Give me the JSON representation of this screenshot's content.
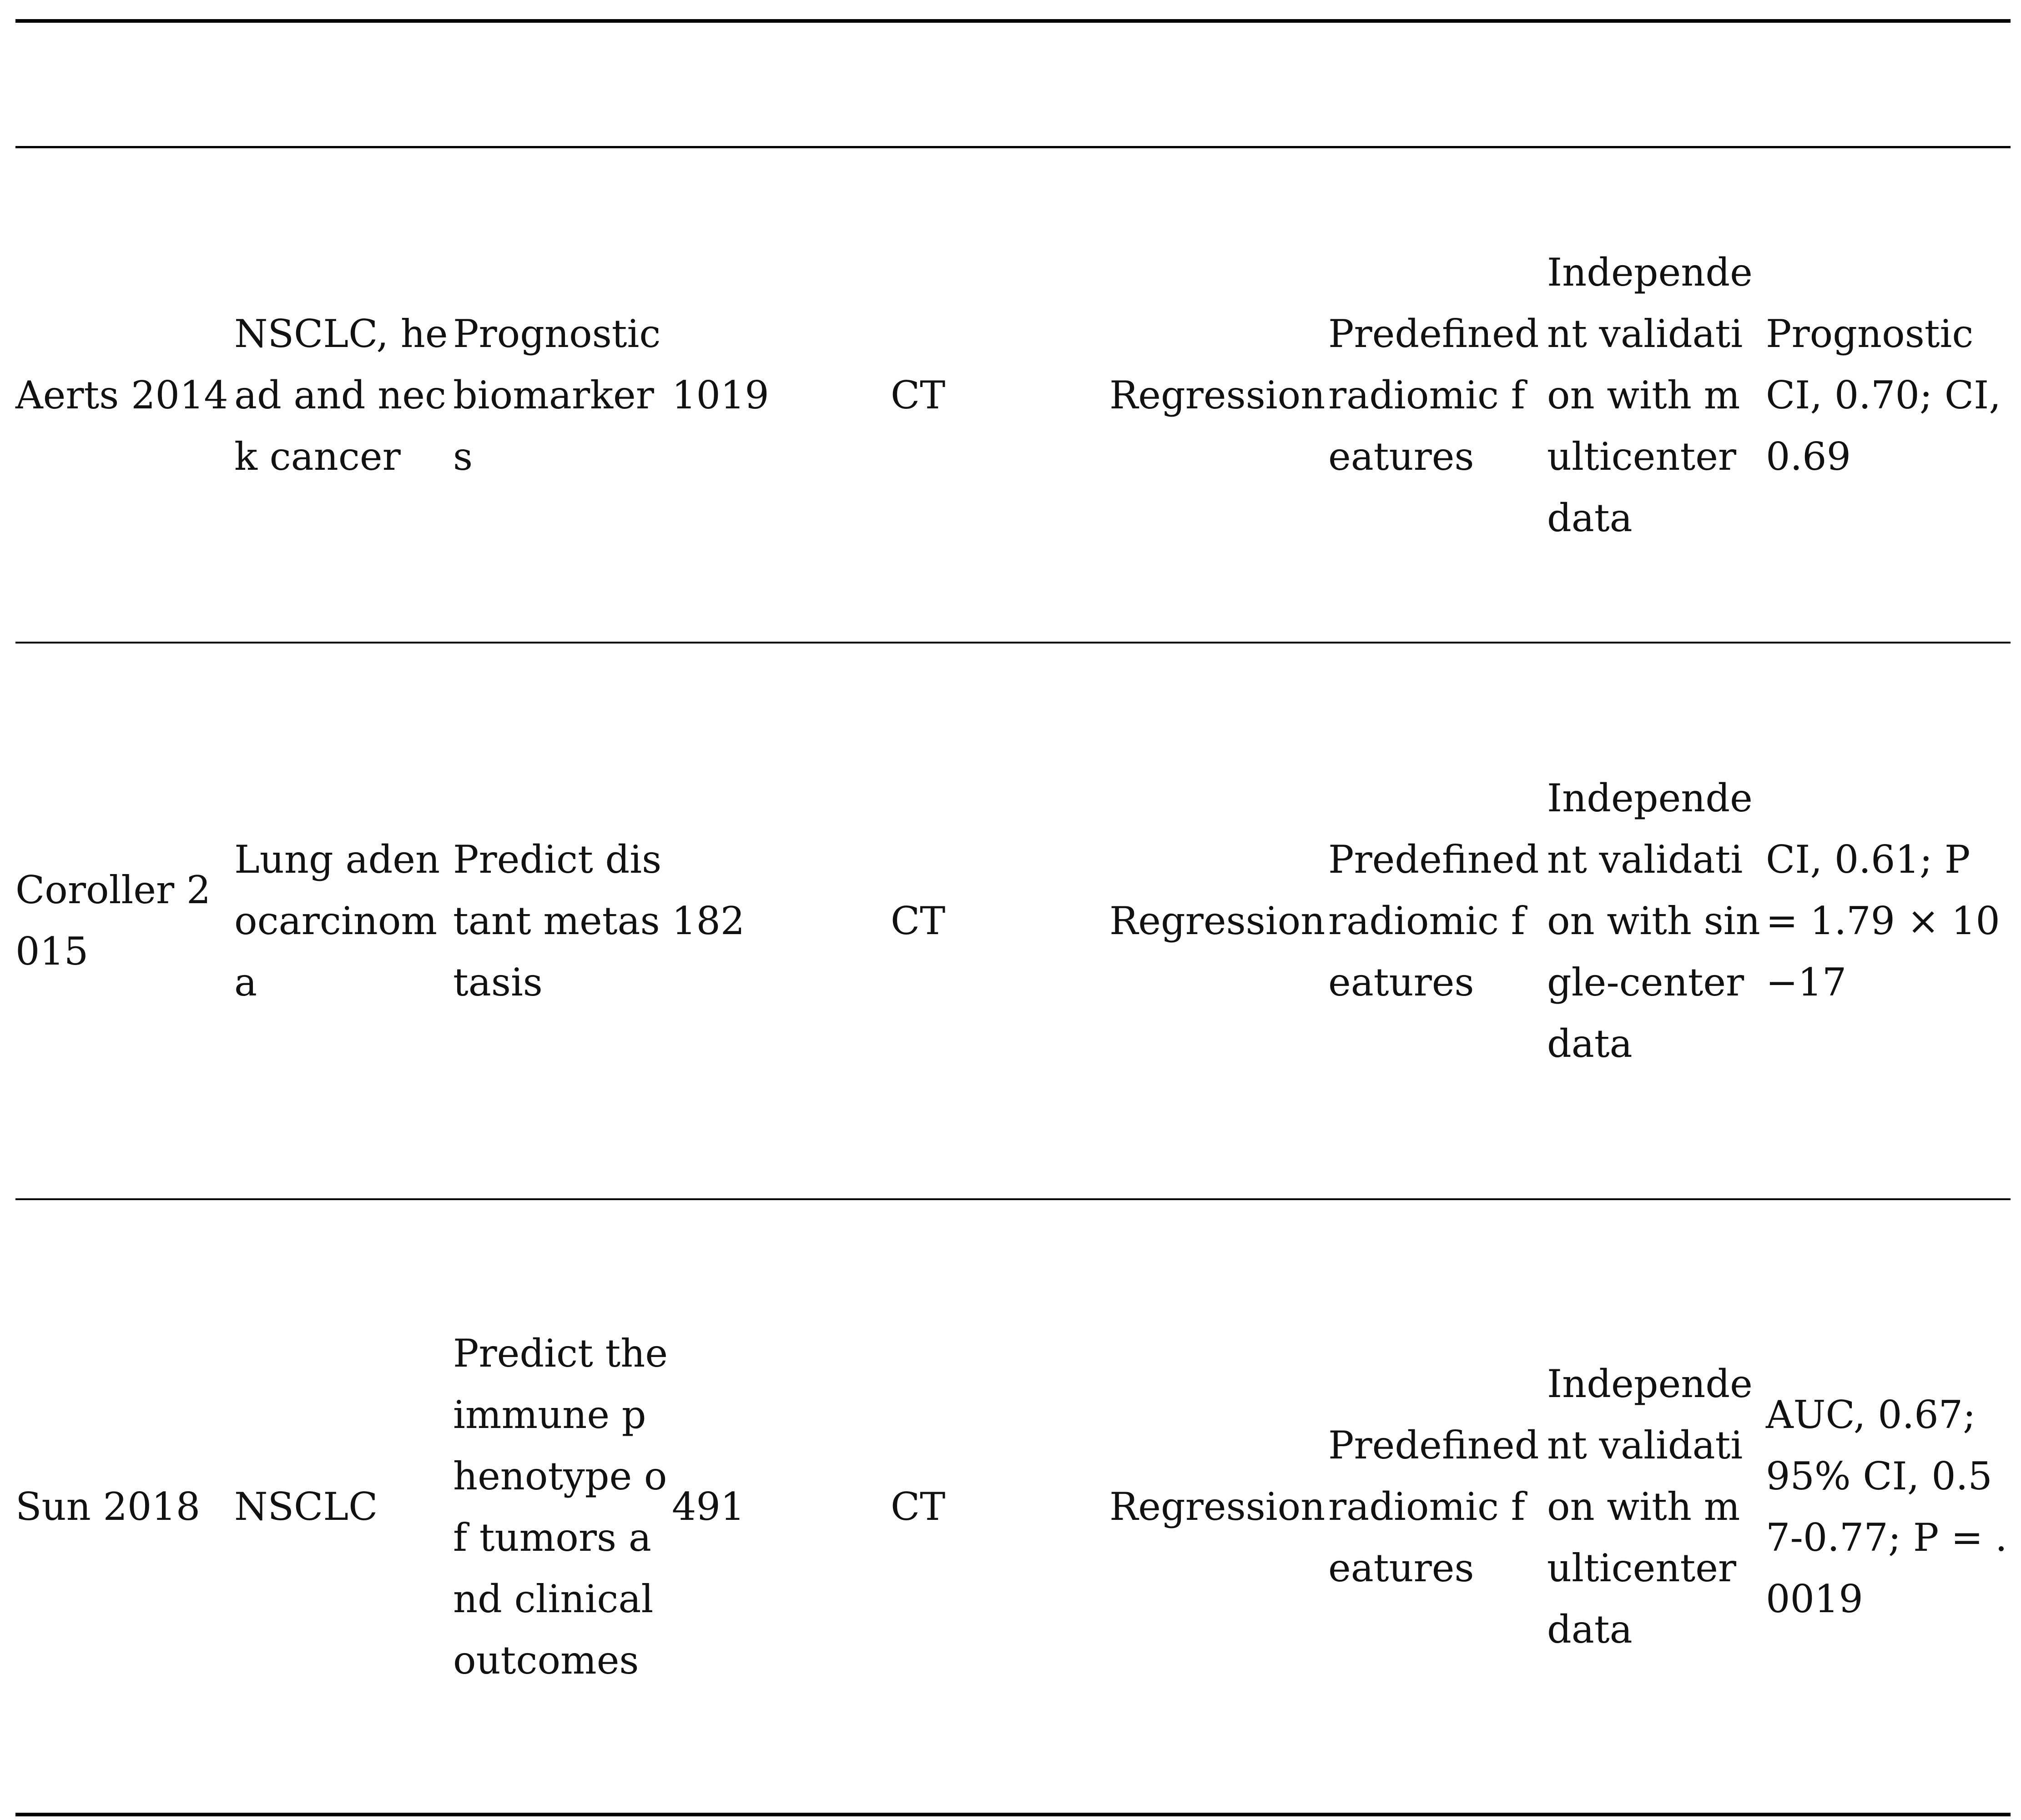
{
  "table": {
    "rows": [
      [
        "Aerts 2014",
        "NSCLC, head and neck cancer",
        "Prognostic biomarkers",
        "1019",
        "CT",
        "Regression",
        "Predefined radiomic features",
        "Independent validation with multicenter data",
        "Prognostic CI, 0.70; CI, 0.69"
      ],
      [
        "Coroller 2015",
        "Lung adenocarcinoma",
        "Predict distant metastasis",
        "182",
        "CT",
        "Regression",
        "Predefined radiomic features",
        "Independent validation with single-center data",
        "CI, 0.61; P = 1.79 × 10−17"
      ],
      [
        "Sun 2018",
        "NSCLC",
        "Predict the immune phenotype of tumors and clinical outcomes",
        "491",
        "CT",
        "Regression",
        "Predefined radiomic features",
        "Independent validation with multicenter data",
        "AUC, 0.67; 95% CI, 0.57-0.77; P = .0019"
      ]
    ]
  }
}
